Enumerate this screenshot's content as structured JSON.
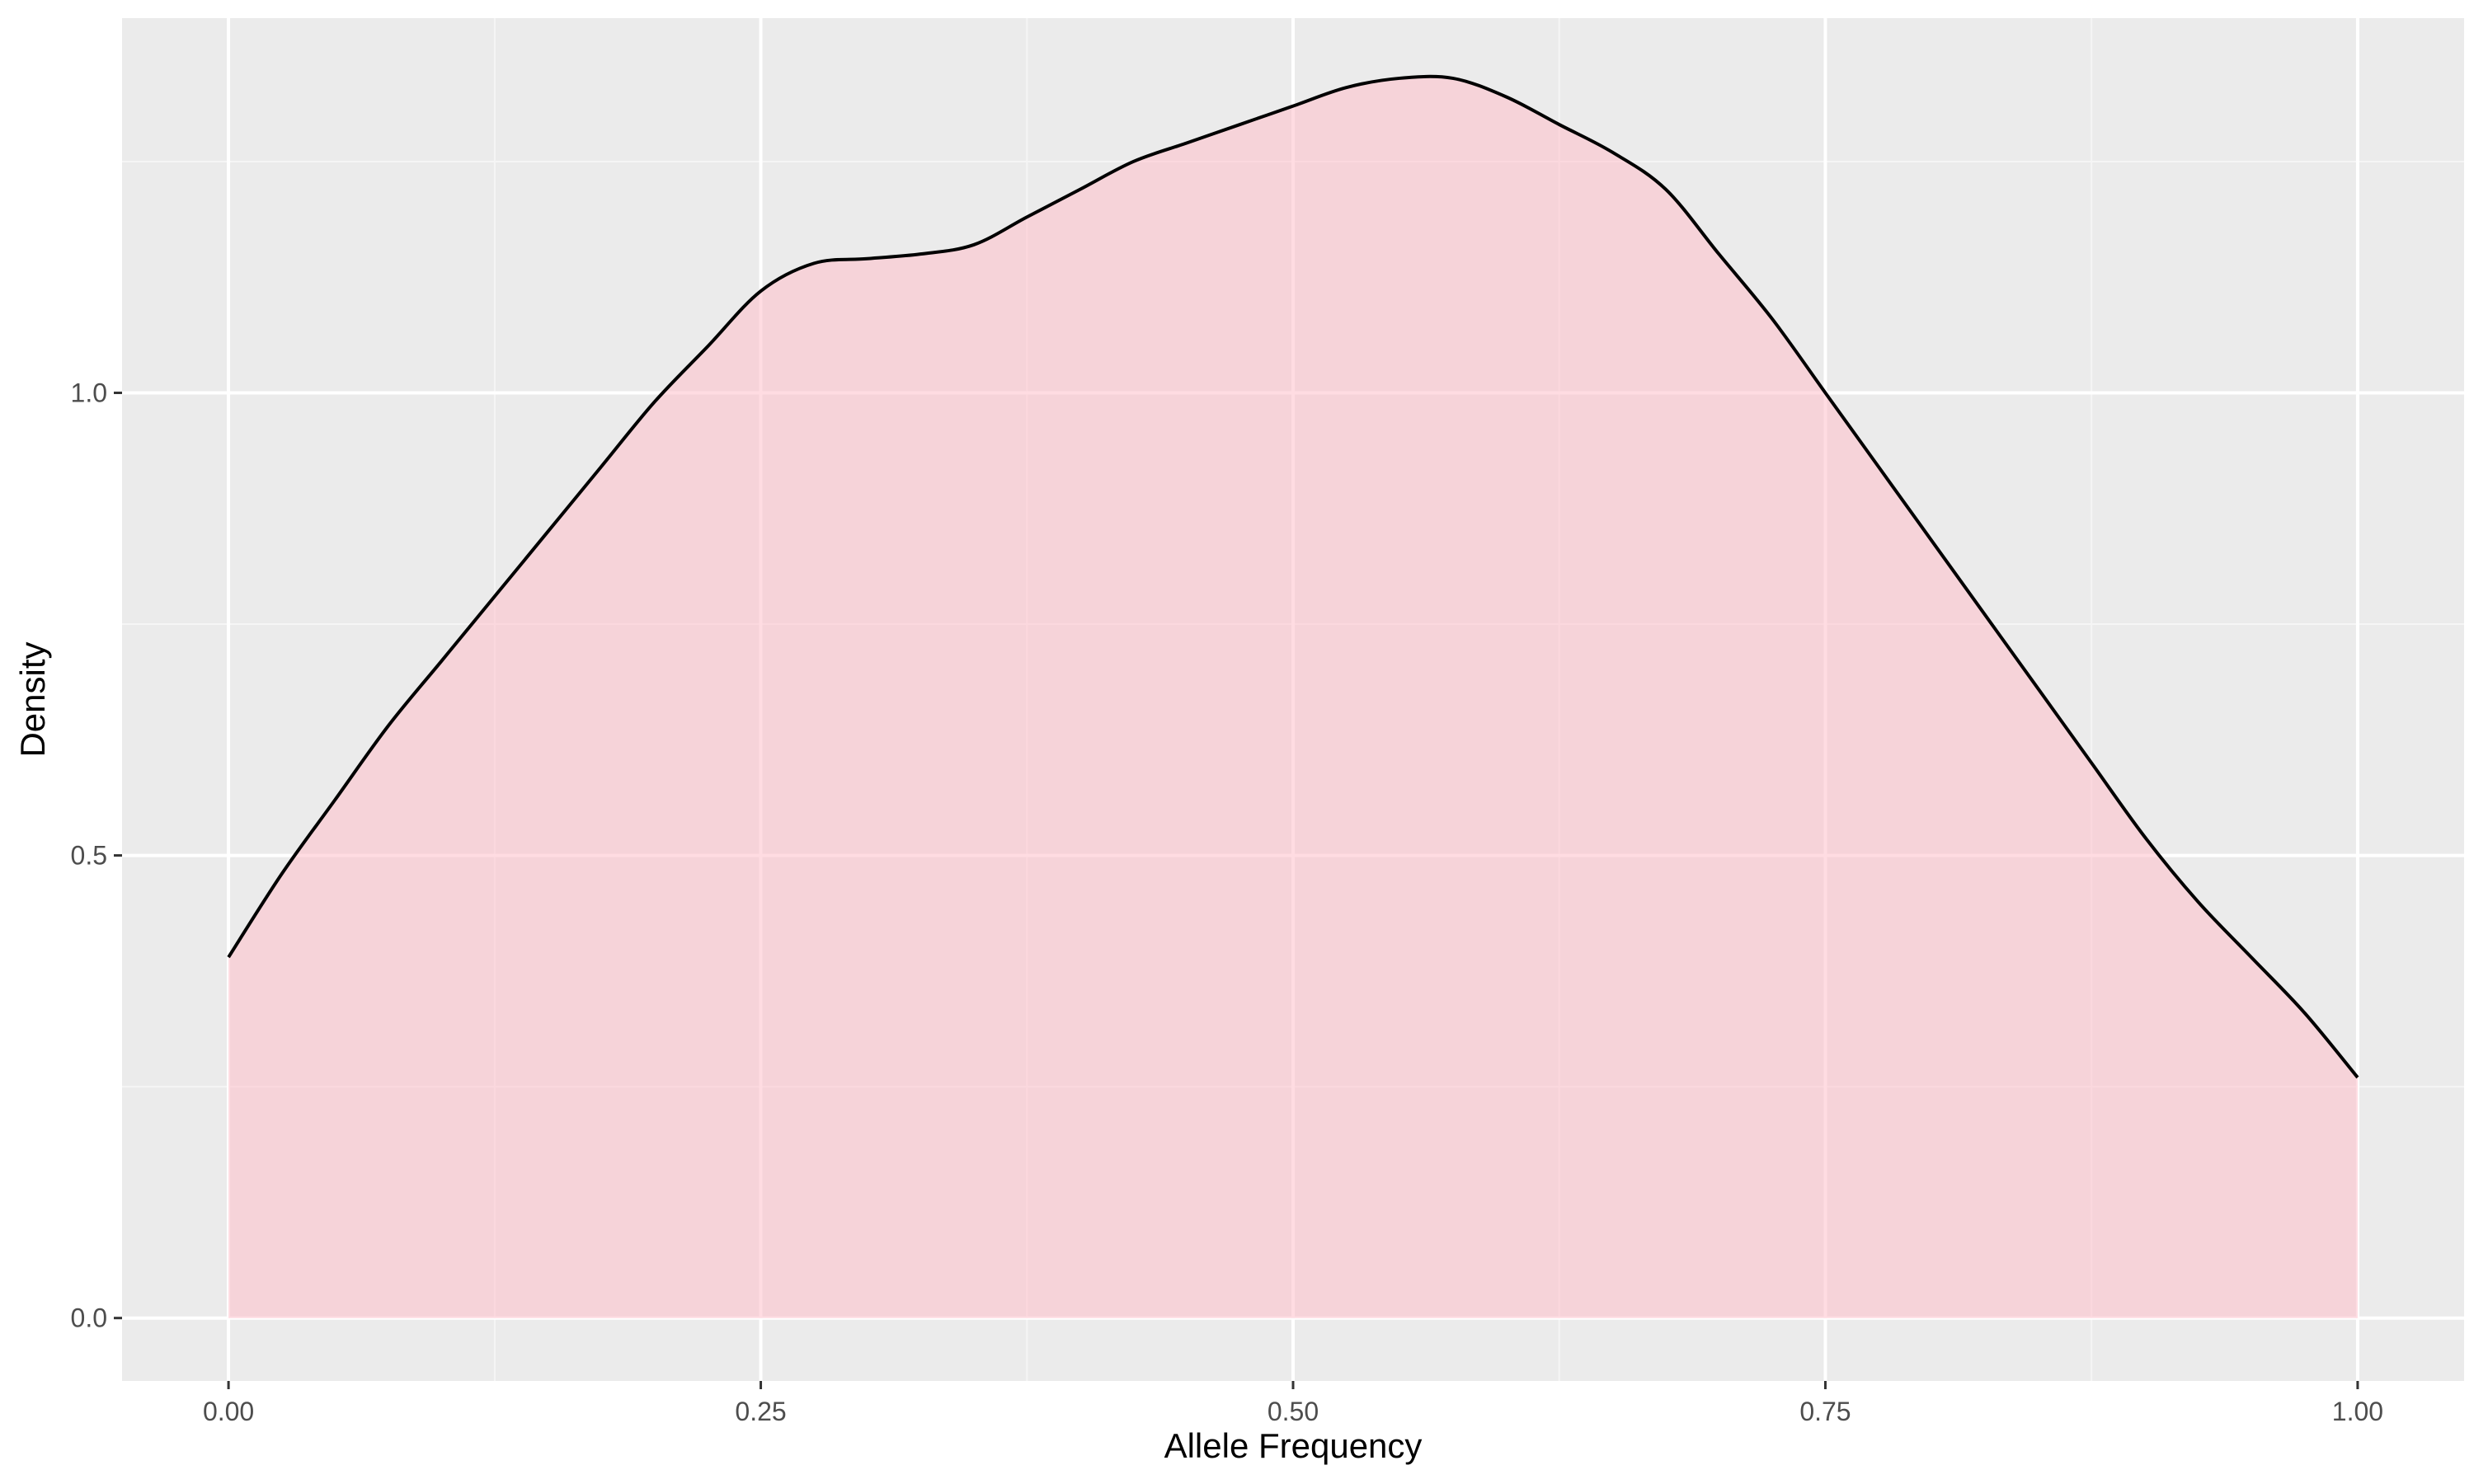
{
  "chart_data": {
    "type": "area",
    "title": "",
    "xlabel": "Allele Frequency",
    "ylabel": "Density",
    "xlim": [
      -0.05,
      1.05
    ],
    "ylim": [
      -0.068,
      1.405
    ],
    "x_ticks": [
      0.0,
      0.25,
      0.5,
      0.75,
      1.0
    ],
    "x_tick_labels": [
      "0.00",
      "0.25",
      "0.50",
      "0.75",
      "1.00"
    ],
    "y_ticks": [
      0.0,
      0.5,
      1.0
    ],
    "y_tick_labels": [
      "0.0",
      "0.5",
      "1.0"
    ],
    "grid": true,
    "legend": "none",
    "series": [
      {
        "x": [
          0.0,
          0.025,
          0.05,
          0.075,
          0.1,
          0.125,
          0.15,
          0.175,
          0.2,
          0.225,
          0.25,
          0.275,
          0.3,
          0.325,
          0.35,
          0.375,
          0.4,
          0.425,
          0.45,
          0.475,
          0.5,
          0.525,
          0.55,
          0.575,
          0.6,
          0.625,
          0.65,
          0.675,
          0.7,
          0.725,
          0.75,
          0.775,
          0.8,
          0.825,
          0.85,
          0.875,
          0.9,
          0.925,
          0.95,
          0.975,
          1.0
        ],
        "y": [
          0.39,
          0.48,
          0.56,
          0.64,
          0.71,
          0.78,
          0.85,
          0.92,
          0.99,
          1.05,
          1.11,
          1.14,
          1.145,
          1.15,
          1.16,
          1.19,
          1.22,
          1.25,
          1.27,
          1.29,
          1.31,
          1.33,
          1.34,
          1.34,
          1.32,
          1.29,
          1.26,
          1.22,
          1.15,
          1.08,
          1.0,
          0.92,
          0.84,
          0.76,
          0.68,
          0.6,
          0.52,
          0.45,
          0.39,
          0.33,
          0.26
        ]
      }
    ],
    "colors": {
      "panel_background": "#ebebeb",
      "grid_major": "#ffffff",
      "grid_minor": "#f5f5f5",
      "area_fill": "#ffc0cb",
      "area_fill_opacity": 0.55,
      "line": "#000000",
      "tick_text": "#4d4d4d",
      "axis_title_text": "#000000"
    }
  }
}
